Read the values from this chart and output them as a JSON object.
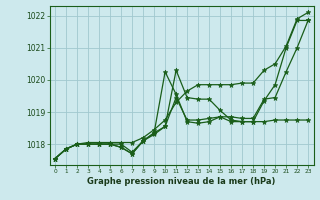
{
  "title": "Graphe pression niveau de la mer (hPa)",
  "hours": [
    0,
    1,
    2,
    3,
    4,
    5,
    6,
    7,
    8,
    9,
    10,
    11,
    12,
    13,
    14,
    15,
    16,
    17,
    18,
    19,
    20,
    21,
    22,
    23
  ],
  "ylim": [
    1017.35,
    1022.3
  ],
  "yticks": [
    1018,
    1019,
    1020,
    1021,
    1022
  ],
  "background_color": "#cde9ed",
  "grid_color": "#a0c8cf",
  "line_color": "#1a5e1a",
  "series": [
    [
      1017.55,
      1017.85,
      1018.0,
      1018.0,
      1018.0,
      1018.0,
      1018.0,
      1017.75,
      1018.1,
      1018.3,
      1018.55,
      1019.45,
      1018.75,
      1018.75,
      1018.8,
      1018.85,
      1018.7,
      1018.7,
      1018.7,
      1018.7,
      1018.75,
      1018.75,
      1018.75,
      1018.75
    ],
    [
      1017.55,
      1017.85,
      1018.0,
      1018.0,
      1018.0,
      1018.0,
      1017.9,
      1017.7,
      1018.1,
      1018.35,
      1020.25,
      1019.55,
      1018.7,
      1018.65,
      1018.7,
      1018.85,
      1018.85,
      1018.8,
      1018.8,
      1019.4,
      1019.45,
      1020.25,
      1021.0,
      1021.85
    ],
    [
      1017.55,
      1017.85,
      1018.0,
      1018.0,
      1018.0,
      1018.0,
      1017.9,
      1017.7,
      1018.1,
      1018.35,
      1018.55,
      1020.3,
      1019.45,
      1019.4,
      1019.4,
      1019.05,
      1018.75,
      1018.7,
      1018.7,
      1019.35,
      1019.85,
      1021.0,
      1021.85,
      1021.85
    ],
    [
      1017.55,
      1017.85,
      1018.0,
      1018.05,
      1018.05,
      1018.05,
      1018.05,
      1018.05,
      1018.2,
      1018.45,
      1018.75,
      1019.3,
      1019.65,
      1019.85,
      1019.85,
      1019.85,
      1019.85,
      1019.9,
      1019.9,
      1020.3,
      1020.5,
      1021.05,
      1021.9,
      1022.1
    ]
  ]
}
